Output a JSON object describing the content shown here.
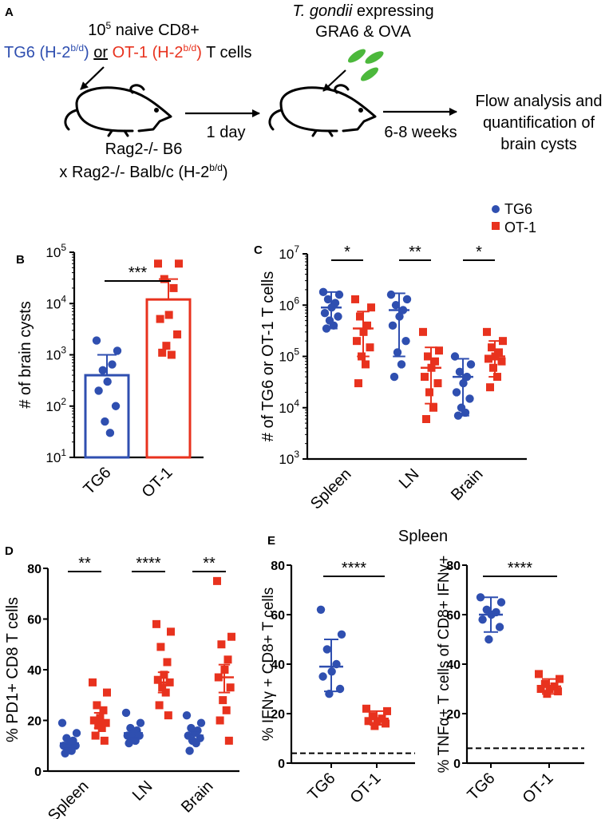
{
  "colors": {
    "tg6": "#2f4fb0",
    "ot1": "#e8321e",
    "parasite": "#4cb83c",
    "axis": "#000000"
  },
  "panel_labels": {
    "a": "A",
    "b": "B",
    "c": "C",
    "d": "D",
    "e": "E"
  },
  "schematic": {
    "inject_prefix": "10",
    "inject_exp": "5",
    "inject_suffix": " naive CD8+",
    "tg6_name": "TG6 (H-2",
    "tg6_sup": "b/d",
    "tg6_close": ")",
    "or_word": "or",
    "ot1_name": "OT-1 (H-2",
    "ot1_sup": "b/d",
    "ot1_close": ")",
    "tcells_word": "T cells",
    "parasite_italic": "T. gondii",
    "parasite_rest": " expressing",
    "parasite_line2": "GRA6 & OVA",
    "mouse_line1": "Rag2-/- B6",
    "mouse_line2_pre": "x Rag2-/- Balb/c (H-2",
    "mouse_line2_sup": "b/d",
    "mouse_line2_post": ")",
    "step1": "1 day",
    "step2": "6-8 weeks",
    "outcome": [
      "Flow analysis and",
      "quantification of",
      "brain cysts"
    ]
  },
  "legend": {
    "tg6": "TG6",
    "ot1": "OT-1"
  },
  "spleen_title": "Spleen",
  "chart_data": [
    {
      "id": "B",
      "type": "bar",
      "scale": "log",
      "ylabel": "# of brain cysts",
      "categories": [
        "TG6",
        "OT-1"
      ],
      "yticks": [
        {
          "v": 10,
          "base": "10",
          "exp": "1"
        },
        {
          "v": 100,
          "base": "10",
          "exp": "2"
        },
        {
          "v": 1000,
          "base": "10",
          "exp": "3"
        },
        {
          "v": 10000,
          "base": "10",
          "exp": "4"
        },
        {
          "v": 100000,
          "base": "10",
          "exp": "5"
        }
      ],
      "ylim": [
        10,
        100000
      ],
      "means": [
        400,
        12000
      ],
      "errors": [
        [
          400,
          1000
        ],
        [
          12000,
          30000
        ]
      ],
      "points": [
        [
          1900,
          1200,
          500,
          650,
          300,
          200,
          100,
          50,
          30
        ],
        [
          60000,
          60000,
          30000,
          20000,
          6000,
          5000,
          2500,
          1500,
          1000,
          1100
        ]
      ],
      "significance": [
        {
          "from": 0,
          "to": 1,
          "label": "***"
        }
      ]
    },
    {
      "id": "C",
      "type": "scatter",
      "scale": "log",
      "ylabel": "# of TG6 or OT-1 T cells",
      "categories": [
        "Spleen",
        "LN",
        "Brain"
      ],
      "yticks": [
        {
          "v": 1000,
          "base": "10",
          "exp": "3"
        },
        {
          "v": 10000,
          "base": "10",
          "exp": "4"
        },
        {
          "v": 100000,
          "base": "10",
          "exp": "5"
        },
        {
          "v": 1000000,
          "base": "10",
          "exp": "6"
        },
        {
          "v": 10000000,
          "base": "10",
          "exp": "7"
        }
      ],
      "ylim": [
        1000,
        10000000
      ],
      "series": [
        {
          "name": "TG6",
          "means": [
            900000,
            800000,
            40000
          ],
          "errors": [
            [
              350000,
              1800000
            ],
            [
              100000,
              1700000
            ],
            [
              7000,
              90000
            ]
          ],
          "points": [
            [
              1800000,
              1600000,
              1300000,
              1100000,
              900000,
              700000,
              600000,
              500000,
              400000,
              350000
            ],
            [
              1600000,
              1300000,
              1000000,
              800000,
              600000,
              400000,
              200000,
              120000,
              70000,
              40000
            ],
            [
              100000,
              70000,
              50000,
              40000,
              30000,
              20000,
              15000,
              10000,
              8000,
              7000
            ]
          ]
        },
        {
          "name": "OT-1",
          "means": [
            350000,
            60000,
            100000
          ],
          "errors": [
            [
              100000,
              750000
            ],
            [
              12000,
              150000
            ],
            [
              40000,
              200000
            ]
          ],
          "points": [
            [
              1300000,
              900000,
              600000,
              400000,
              300000,
              200000,
              150000,
              100000,
              70000,
              30000
            ],
            [
              300000,
              130000,
              100000,
              80000,
              60000,
              40000,
              30000,
              20000,
              10000,
              6000
            ],
            [
              300000,
              200000,
              150000,
              120000,
              100000,
              90000,
              80000,
              60000,
              40000,
              25000
            ]
          ]
        }
      ],
      "significance": [
        {
          "cat": 0,
          "label": "*"
        },
        {
          "cat": 1,
          "label": "**"
        },
        {
          "cat": 2,
          "label": "*"
        }
      ]
    },
    {
      "id": "D",
      "type": "scatter",
      "scale": "linear",
      "ylabel": "% PD1+ CD8 T cells",
      "categories": [
        "Spleen",
        "LN",
        "Brain"
      ],
      "yticks": [
        0,
        20,
        40,
        60,
        80
      ],
      "ylim": [
        0,
        80
      ],
      "series": [
        {
          "name": "TG6",
          "means": [
            11,
            15,
            14
          ],
          "errors": [
            [
              9.5,
              13
            ],
            [
              13,
              17
            ],
            [
              12,
              16
            ]
          ],
          "points": [
            [
              19,
              15,
              13,
              12,
              11,
              10,
              10,
              9,
              8,
              7
            ],
            [
              23,
              19,
              17,
              16,
              15,
              14,
              14,
              13,
              12,
              11
            ],
            [
              22,
              19,
              17,
              16,
              15,
              14,
              13,
              12,
              11,
              8
            ]
          ]
        },
        {
          "name": "OT-1",
          "means": [
            20,
            35,
            37
          ],
          "errors": [
            [
              17,
              23
            ],
            [
              31,
              39
            ],
            [
              31,
              42
            ]
          ],
          "points": [
            [
              35,
              31,
              26,
              24,
              21,
              20,
              19,
              18,
              17,
              14,
              12
            ],
            [
              58,
              55,
              49,
              43,
              38,
              36,
              35,
              33,
              31,
              26,
              22
            ],
            [
              75,
              53,
              50,
              44,
              40,
              37,
              33,
              28,
              24,
              20,
              12
            ]
          ]
        }
      ],
      "significance": [
        {
          "cat": 0,
          "label": "**"
        },
        {
          "cat": 1,
          "label": "****"
        },
        {
          "cat": 2,
          "label": "**"
        }
      ]
    },
    {
      "id": "E1",
      "type": "scatter",
      "scale": "linear",
      "ylabel": "% IFNγ + CD8+ T cells",
      "categories": [
        "TG6",
        "OT-1"
      ],
      "yticks": [
        0,
        20,
        40,
        60,
        80
      ],
      "ylim": [
        0,
        80
      ],
      "baseline": 4,
      "series": [
        {
          "name": "TG6",
          "means": [
            39
          ],
          "errors": [
            [
              29,
              50
            ]
          ],
          "points": [
            [
              62,
              52,
              46,
              40,
              37,
              35,
              30,
              28
            ]
          ]
        },
        {
          "name": "OT-1",
          "means": [
            18
          ],
          "errors": [
            [
              15.5,
              21
            ]
          ],
          "points": [
            [
              22,
              21,
              19,
              18,
              17,
              17,
              16,
              15
            ]
          ]
        }
      ],
      "significance": [
        {
          "from": 0,
          "to": 1,
          "label": "****"
        }
      ]
    },
    {
      "id": "E2",
      "type": "scatter",
      "scale": "linear",
      "ylabel": "% TNFα+ T cells of CD8+ IFNγ+",
      "categories": [
        "TG6",
        "OT-1"
      ],
      "yticks": [
        0,
        20,
        40,
        60,
        80
      ],
      "ylim": [
        0,
        80
      ],
      "baseline": 6,
      "series": [
        {
          "name": "TG6",
          "means": [
            60
          ],
          "errors": [
            [
              53,
              67
            ]
          ],
          "points": [
            [
              67,
              65,
              62,
              61,
              60,
              58,
              55,
              50
            ]
          ]
        },
        {
          "name": "OT-1",
          "means": [
            31
          ],
          "errors": [
            [
              28,
              34
            ]
          ],
          "points": [
            [
              36,
              34,
              32,
              31,
              30,
              30,
              29,
              28
            ]
          ]
        }
      ],
      "significance": [
        {
          "from": 0,
          "to": 1,
          "label": "****"
        }
      ]
    }
  ]
}
